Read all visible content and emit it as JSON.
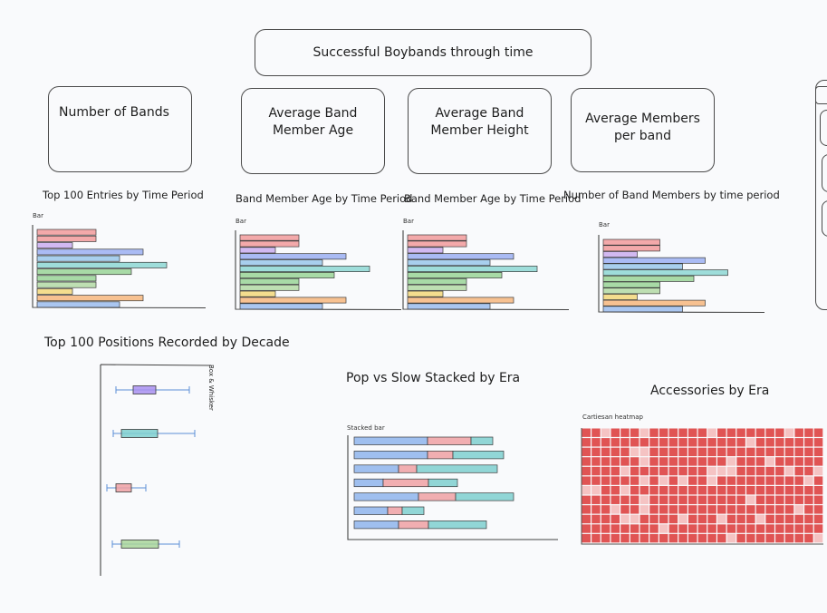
{
  "dashboard": {
    "title": "Successful Boybands through time",
    "kpis": [
      {
        "label_line1": "Number of Bands",
        "label_line2": ""
      },
      {
        "label_line1": "Average Band",
        "label_line2": "Member Age"
      },
      {
        "label_line1": "Average Band",
        "label_line2": "Member Height"
      },
      {
        "label_line1": "Average Members",
        "label_line2": "per band"
      }
    ]
  },
  "colors": {
    "bars": [
      "#f08d8f",
      "#f08d8f",
      "#c3a3ee",
      "#8fa6f2",
      "#8cc0e8",
      "#7fd3cf",
      "#8ccf8a",
      "#8ccf8a",
      "#a9d59a",
      "#f2d36a",
      "#f5ae6e",
      "#8fb4ec"
    ],
    "pop": "#8fb4ec",
    "slow": "#f0a0a3",
    "third": "#7fcfcf",
    "heat_dark": "#e05454",
    "heat_light": "#f5c3c3"
  },
  "labels": {
    "bar_small": "Bar",
    "stacked_small": "Stacked bar",
    "heatmap_small": "Cartiesan heatmap",
    "boxplot_small": "Box & Whisker"
  },
  "chart_data": [
    {
      "type": "bar",
      "title": "Top 100 Entries by Time Period",
      "values": [
        5,
        5,
        3,
        9,
        7,
        11,
        8,
        5,
        5,
        3,
        9,
        7
      ]
    },
    {
      "type": "bar",
      "title": "Band Member Age by Time Period",
      "values": [
        5,
        5,
        3,
        9,
        7,
        11,
        8,
        5,
        5,
        3,
        9,
        7
      ]
    },
    {
      "type": "bar",
      "title": "Band Member Age by Time Period",
      "values": [
        5,
        5,
        3,
        9,
        7,
        11,
        8,
        5,
        5,
        3,
        9,
        7
      ]
    },
    {
      "type": "bar",
      "title": "Number of Band Members by time period",
      "values": [
        5,
        5,
        3,
        9,
        7,
        11,
        8,
        5,
        5,
        3,
        9,
        7
      ]
    },
    {
      "type": "box",
      "title": "Top 100 Positions Recorded by Decade",
      "boxes": [
        {
          "min": 16,
          "q1": 35,
          "q3": 60,
          "max": 97,
          "color": "#a98ff0"
        },
        {
          "min": 13,
          "q1": 22,
          "q3": 62,
          "max": 103,
          "color": "#7fcfcf"
        },
        {
          "min": 6,
          "q1": 16,
          "q3": 33,
          "max": 49,
          "color": "#f0a0a3"
        },
        {
          "min": 12,
          "q1": 22,
          "q3": 63,
          "max": 86,
          "color": "#a9d59a"
        }
      ]
    },
    {
      "type": "bar",
      "title": "Pop vs Slow Stacked by Era",
      "series": [
        {
          "values": [
            81,
            81,
            49,
            32,
            71,
            37,
            49
          ]
        },
        {
          "values": [
            48,
            28,
            20,
            50,
            41,
            16,
            33
          ]
        },
        {
          "values": [
            24,
            56,
            89,
            32,
            64,
            24,
            64
          ]
        }
      ]
    },
    {
      "type": "heatmap",
      "title": "Accessories by Era",
      "rows": 12,
      "cols": 25
    }
  ]
}
